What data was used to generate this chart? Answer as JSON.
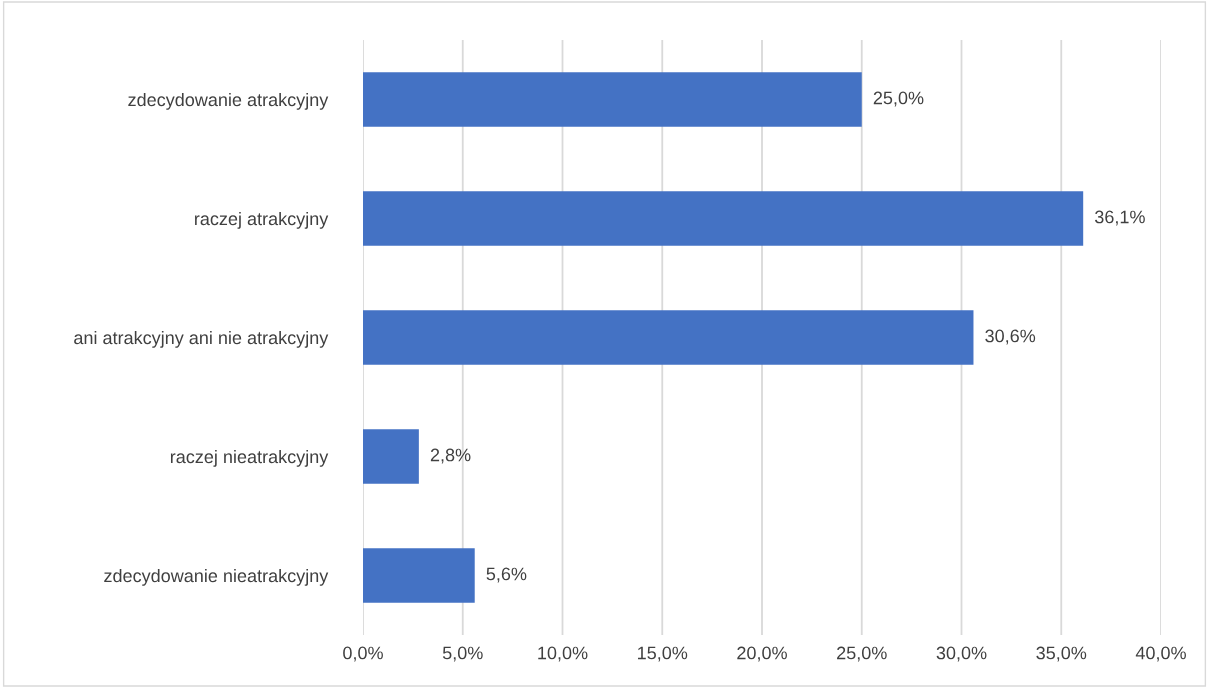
{
  "chart_data": {
    "type": "bar",
    "orientation": "horizontal",
    "categories": [
      "zdecydowanie atrakcyjny",
      "raczej atrakcyjny",
      "ani atrakcyjny ani nie atrakcyjny",
      "raczej nieatrakcyjny",
      "zdecydowanie nieatrakcyjny"
    ],
    "values": [
      25.0,
      36.1,
      30.6,
      2.8,
      5.6
    ],
    "value_labels": [
      "25,0%",
      "36,1%",
      "30,6%",
      "2,8%",
      "5,6%"
    ],
    "color": "#4472c4",
    "xlim": [
      0,
      40
    ],
    "xticks": [
      {
        "value": 0,
        "label": "0,0%"
      },
      {
        "value": 5,
        "label": "5,0%"
      },
      {
        "value": 10,
        "label": "10,0%"
      },
      {
        "value": 15,
        "label": "15,0%"
      },
      {
        "value": 20,
        "label": "20,0%"
      },
      {
        "value": 25,
        "label": "25,0%"
      },
      {
        "value": 30,
        "label": "30,0%"
      },
      {
        "value": 35,
        "label": "35,0%"
      },
      {
        "value": 40,
        "label": "40,0%"
      }
    ],
    "grid": "x",
    "legend": false
  }
}
